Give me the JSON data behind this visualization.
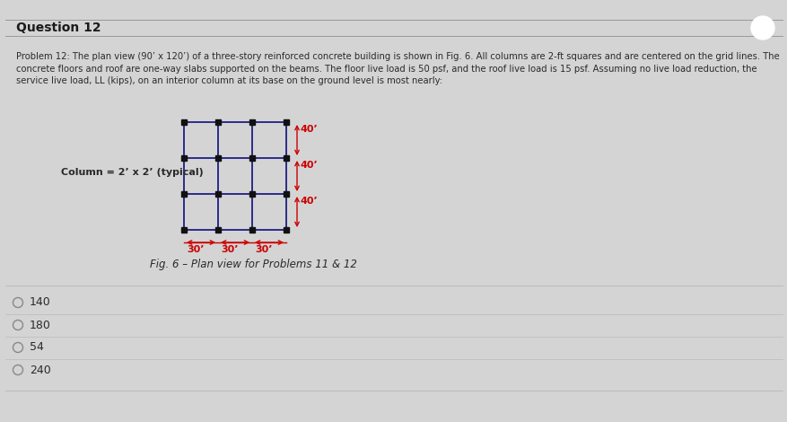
{
  "title": "Question 12",
  "problem_text_line1": "Problem 12: The plan view (90’ x 120’) of a three-story reinforced concrete building is shown in Fig. 6. All columns are 2-ft squares and are centered on the grid lines. The",
  "problem_text_line2": "concrete floors and roof are one-way slabs supported on the beams. The floor live load is 50 psf, and the roof live load is 15 psf. Assuming no live load reduction, the",
  "problem_text_line3": "service live load, LL (kips), on an interior column at its base on the ground level is most nearly:",
  "column_label": "Column = 2’ x 2’ (typical)",
  "fig_caption": "Fig. 6 – Plan view for Problems 11 & 12",
  "n_cols": 4,
  "n_rows": 4,
  "dim_x": [
    "30’",
    "30’",
    "30’"
  ],
  "dim_y": [
    "40’",
    "40’",
    "40’"
  ],
  "choices": [
    "140",
    "180",
    "54",
    "240"
  ],
  "bg_color": "#d4d4d4",
  "grid_color": "#2b2b8a",
  "dim_color": "#cc0000",
  "text_color": "#2a2a2a",
  "title_color": "#1a1a1a",
  "choice_circle_color": "#888888",
  "separator_color": "#bbbbbb",
  "dot_color": "#111111",
  "header_bg": "#cccccc",
  "title_sep_color": "#999999"
}
